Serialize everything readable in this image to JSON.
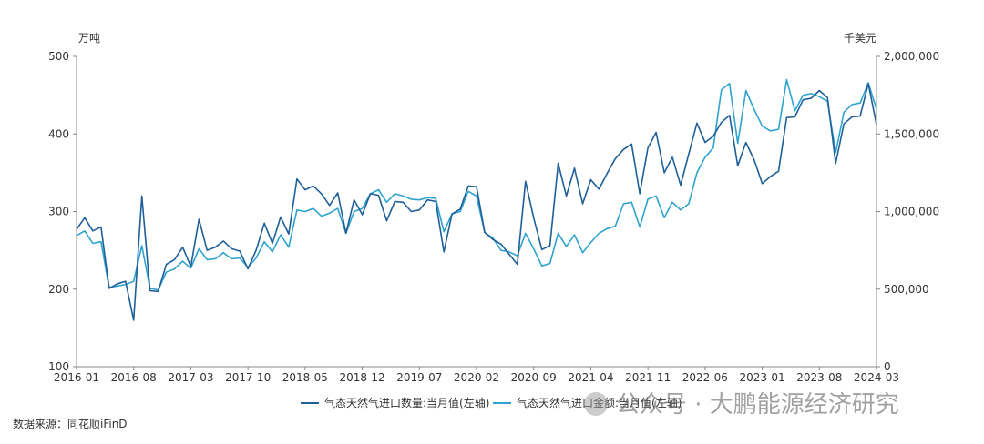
{
  "chart_data": {
    "type": "line",
    "left_unit": "万吨",
    "right_unit": "千美元",
    "x_tick_labels": [
      "2016-01",
      "2016-08",
      "2017-03",
      "2017-10",
      "2018-05",
      "2018-12",
      "2019-07",
      "2020-02",
      "2020-09",
      "2021-04",
      "2021-11",
      "2022-06",
      "2023-01",
      "2023-08",
      "2024-03"
    ],
    "ylim_left": [
      100,
      500
    ],
    "yticks_left": [
      "100",
      "200",
      "300",
      "400",
      "500"
    ],
    "ylim_right": [
      0,
      2000000
    ],
    "yticks_right": [
      "0",
      "500,000",
      "1,000,000",
      "1,500,000",
      "2,000,000"
    ],
    "grid": false,
    "legend_position": "bottom",
    "start_month": "2016-01",
    "series": [
      {
        "name": "气态天然气进口数量:当月值(左轴)",
        "axis": "left",
        "color": "#1f5f99",
        "values": [
          277,
          292,
          275,
          280,
          201,
          207,
          210,
          160,
          320,
          198,
          197,
          232,
          238,
          254,
          229,
          290,
          250,
          254,
          262,
          252,
          249,
          226,
          250,
          285,
          259,
          293,
          271,
          342,
          328,
          333,
          323,
          308,
          324,
          272,
          315,
          296,
          323,
          321,
          288,
          313,
          312,
          300,
          302,
          315,
          313,
          248,
          297,
          303,
          333,
          332,
          273,
          264,
          258,
          245,
          232,
          339,
          292,
          251,
          256,
          362,
          320,
          356,
          310,
          341,
          329,
          349,
          368,
          380,
          387,
          323,
          382,
          402,
          350,
          370,
          334,
          374,
          414,
          389,
          397,
          415,
          424,
          359,
          389,
          367,
          336,
          345,
          352,
          421,
          422,
          444,
          446,
          456,
          447,
          362,
          413,
          422,
          423,
          465,
          412
        ]
      },
      {
        "name": "气态天然气进口金额:当月值(左轴)",
        "axis": "right",
        "color": "#2ea3cf",
        "values": [
          845,
          875,
          795,
          805,
          510,
          520,
          530,
          550,
          780,
          505,
          495,
          610,
          630,
          680,
          635,
          760,
          690,
          695,
          735,
          695,
          700,
          640,
          700,
          805,
          740,
          850,
          770,
          1010,
          1000,
          1020,
          970,
          990,
          1020,
          860,
          1000,
          1020,
          1115,
          1140,
          1060,
          1115,
          1100,
          1080,
          1075,
          1090,
          1085,
          870,
          985,
          1000,
          1130,
          1100,
          865,
          830,
          750,
          740,
          715,
          860,
          760,
          650,
          665,
          860,
          775,
          850,
          735,
          800,
          860,
          890,
          905,
          1050,
          1060,
          900,
          1080,
          1100,
          960,
          1060,
          1010,
          1050,
          1250,
          1350,
          1410,
          1785,
          1825,
          1440,
          1780,
          1660,
          1550,
          1520,
          1530,
          1850,
          1650,
          1750,
          1760,
          1740,
          1710,
          1380,
          1640,
          1690,
          1700,
          1830,
          1660
        ]
      }
    ]
  },
  "source": "数据来源：同花顺iFinD",
  "watermark": "公众号 · 大鹏能源经济研究"
}
